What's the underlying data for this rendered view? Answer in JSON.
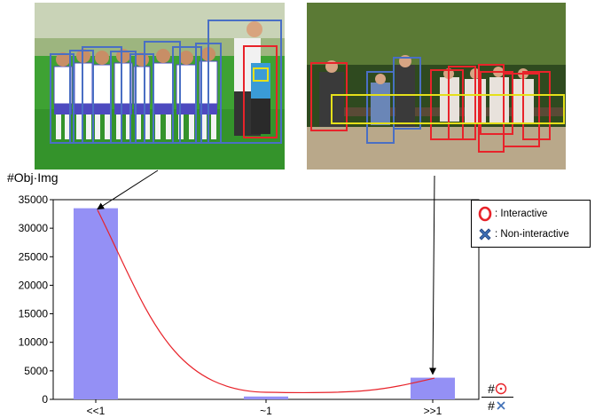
{
  "chart_data": {
    "type": "bar",
    "categories": [
      "<<1",
      "~1",
      ">>1"
    ],
    "values": [
      33500,
      500,
      3800
    ],
    "ylabel": "#Obj·Img",
    "ylim": [
      0,
      35000
    ],
    "yticks": [
      0,
      5000,
      10000,
      15000,
      20000,
      25000,
      30000,
      35000
    ],
    "xlabel_numerator": "#",
    "xlabel_denominator": "#",
    "bar_color": "#9490f5",
    "trend_curve_color": "#e8232a",
    "legend": {
      "placement": "right",
      "items": [
        {
          "label": ": Interactive",
          "symbol": "red-ring",
          "color": "#e8232a"
        },
        {
          "label": ": Non-interactive",
          "symbol": "blue-cross",
          "color": "#3f6fb5"
        }
      ]
    },
    "grid": false
  },
  "images": {
    "left_photo_icon": "soccer-team-photo",
    "right_photo_icon": "park-bench-people-photo",
    "box_colors": {
      "interactive": "#e8232a",
      "non_interactive": "#4a6fc4",
      "highlight": "#e5e01a"
    }
  }
}
